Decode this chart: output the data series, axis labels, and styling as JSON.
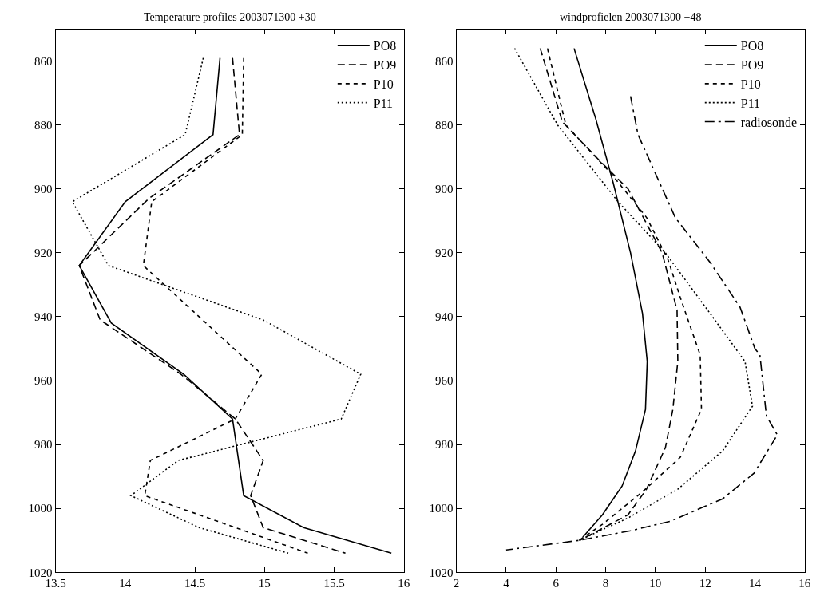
{
  "chart_data": [
    {
      "type": "line",
      "title": "Temperature profiles 2003071300 +30",
      "xlim": [
        13.5,
        16
      ],
      "xticks": [
        {
          "value": 13.5,
          "label": "13.5"
        },
        14,
        {
          "value": 14.5,
          "label": "14.5"
        },
        15,
        {
          "value": 15.5,
          "label": "15.5"
        },
        16
      ],
      "ylim": [
        1020,
        850
      ],
      "yticks": [
        860,
        880,
        900,
        920,
        940,
        960,
        980,
        1000,
        1020
      ],
      "legend": "top right",
      "series": [
        {
          "name": "PO8",
          "color": "#000000",
          "line_style": "solid",
          "x": [
            14.68,
            14.63,
            14.0,
            13.67,
            13.9,
            14.42,
            14.77,
            14.85,
            15.28,
            15.91
          ],
          "values": [
            859,
            883,
            904,
            924,
            942,
            958,
            972,
            996,
            1006,
            1014
          ]
        },
        {
          "name": "PO9",
          "color": "#000000",
          "line_style": "dashed",
          "x": [
            14.77,
            14.82,
            14.17,
            13.67,
            13.82,
            14.4,
            14.79,
            14.99,
            14.9,
            14.99,
            15.58
          ],
          "values": [
            859,
            883,
            903,
            924,
            941,
            958,
            972,
            985,
            996,
            1006,
            1014
          ]
        },
        {
          "name": "P10",
          "color": "#000000",
          "line_style": "short dashed",
          "x": [
            14.85,
            14.84,
            14.19,
            14.13,
            14.98,
            14.79,
            14.18,
            14.14,
            15.31
          ],
          "values": [
            859,
            883,
            904,
            924,
            958,
            972,
            985,
            996,
            1014
          ]
        },
        {
          "name": "P11",
          "color": "#000000",
          "line_style": "dotted",
          "x": [
            14.56,
            14.43,
            13.62,
            13.88,
            14.99,
            15.69,
            15.55,
            14.38,
            14.04,
            14.53,
            15.17
          ],
          "values": [
            859,
            883,
            904,
            924,
            941,
            958,
            972,
            985,
            996,
            1006,
            1014
          ]
        }
      ]
    },
    {
      "type": "line",
      "title": "windprofielen 2003071300 +48",
      "xlim": [
        2,
        16
      ],
      "xticks": [
        2,
        4,
        6,
        8,
        10,
        12,
        14,
        16
      ],
      "ylim": [
        1020,
        850
      ],
      "yticks": [
        860,
        880,
        900,
        920,
        940,
        960,
        980,
        1000,
        1020
      ],
      "legend": "top right",
      "series": [
        {
          "name": "PO8",
          "color": "#000000",
          "line_style": "solid",
          "x": [
            6.73,
            7.6,
            8.3,
            9.0,
            9.48,
            9.67,
            9.6,
            9.2,
            8.66,
            7.87,
            7.08
          ],
          "values": [
            856,
            878,
            898,
            920,
            939,
            954,
            969,
            982,
            993,
            1002,
            1009
          ]
        },
        {
          "name": "PO9",
          "color": "#000000",
          "line_style": "dashed",
          "x": [
            5.37,
            6.26,
            7.74,
            8.9,
            10.27,
            10.87,
            10.9,
            10.7,
            10.4,
            9.64,
            8.9,
            6.96
          ],
          "values": [
            856,
            879,
            891,
            900,
            920,
            938,
            954,
            969,
            981,
            994,
            1002,
            1010
          ]
        },
        {
          "name": "P10",
          "color": "#000000",
          "line_style": "short dashed",
          "x": [
            5.66,
            6.4,
            8.2,
            9.65,
            10.5,
            11.0,
            11.8,
            11.85,
            11.0,
            9.45,
            7.87,
            6.93
          ],
          "values": [
            856,
            880,
            895,
            909,
            922,
            934,
            952,
            969,
            984,
            995,
            1005,
            1010
          ]
        },
        {
          "name": "P11",
          "color": "#000000",
          "line_style": "dotted",
          "x": [
            4.34,
            6.07,
            8.5,
            10.4,
            12.2,
            13.6,
            13.9,
            12.7,
            10.9,
            8.9,
            6.93
          ],
          "values": [
            856,
            880,
            904,
            920,
            939,
            954,
            968,
            982,
            994,
            1003,
            1010
          ]
        },
        {
          "name": "radiosonde",
          "color": "#000000",
          "line_style": "dash-dot",
          "x": [
            9.0,
            9.3,
            10.8,
            12.2,
            13.4,
            14.0,
            14.2,
            14.46,
            14.9,
            13.96,
            12.7,
            10.6,
            9.0,
            6.93,
            4.0
          ],
          "values": [
            871,
            883,
            909,
            923,
            937,
            950,
            952,
            971,
            977,
            989,
            997,
            1004,
            1007,
            1010,
            1013
          ]
        }
      ]
    }
  ]
}
